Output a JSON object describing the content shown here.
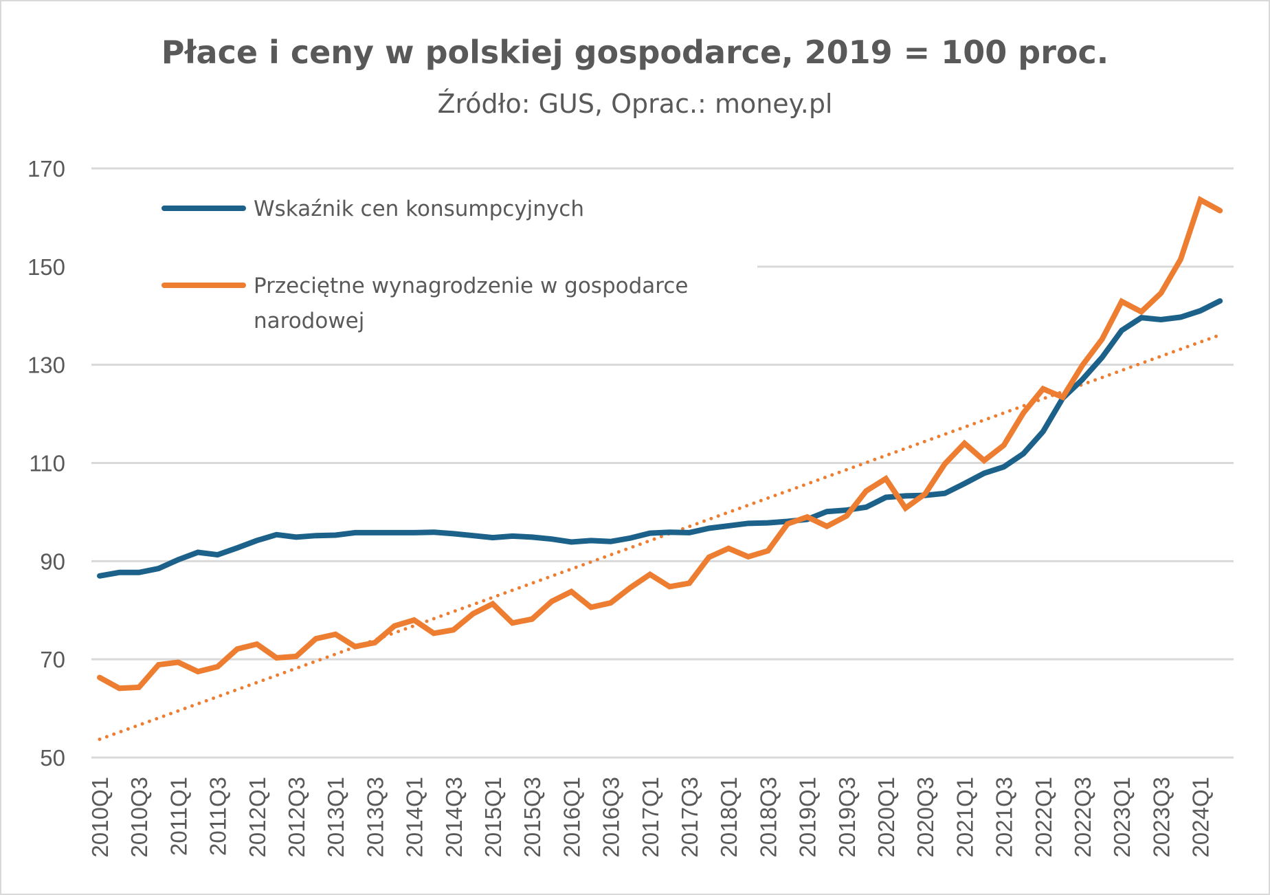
{
  "chart_data": {
    "type": "line",
    "title": "Płace i ceny w polskiej gospodarce, 2019 = 100 proc.",
    "subtitle": "Źródło: GUS, Oprac.: money.pl",
    "xlabel": "",
    "ylabel": "",
    "ylim": [
      50,
      170
    ],
    "yticks": [
      "50",
      "70",
      "90",
      "110",
      "130",
      "150",
      "170"
    ],
    "grid": true,
    "legend_position": "top-left",
    "x": [
      "2010Q1",
      "2010Q2",
      "2010Q3",
      "2010Q4",
      "2011Q1",
      "2011Q2",
      "2011Q3",
      "2011Q4",
      "2012Q1",
      "2012Q2",
      "2012Q3",
      "2012Q4",
      "2013Q1",
      "2013Q2",
      "2013Q3",
      "2013Q4",
      "2014Q1",
      "2014Q2",
      "2014Q3",
      "2014Q4",
      "2015Q1",
      "2015Q2",
      "2015Q3",
      "2015Q4",
      "2016Q1",
      "2016Q2",
      "2016Q3",
      "2016Q4",
      "2017Q1",
      "2017Q2",
      "2017Q3",
      "2017Q4",
      "2018Q1",
      "2018Q2",
      "2018Q3",
      "2018Q4",
      "2019Q1",
      "2019Q2",
      "2019Q3",
      "2019Q4",
      "2020Q1",
      "2020Q2",
      "2020Q3",
      "2020Q4",
      "2021Q1",
      "2021Q2",
      "2021Q3",
      "2021Q4",
      "2022Q1",
      "2022Q2",
      "2022Q3",
      "2022Q4",
      "2023Q1",
      "2023Q2",
      "2023Q3",
      "2023Q4",
      "2024Q1",
      "2024Q2"
    ],
    "xtick_labels": [
      "2010Q1",
      "2010Q3",
      "2011Q1",
      "2011Q3",
      "2012Q1",
      "2012Q3",
      "2013Q1",
      "2013Q3",
      "2014Q1",
      "2014Q3",
      "2015Q1",
      "2015Q3",
      "2016Q1",
      "2016Q3",
      "2017Q1",
      "2017Q3",
      "2018Q1",
      "2018Q3",
      "2019Q1",
      "2019Q3",
      "2020Q1",
      "2020Q3",
      "2021Q1",
      "2021Q3",
      "2022Q1",
      "2022Q3",
      "2023Q1",
      "2023Q3",
      "2024Q1"
    ],
    "series": [
      {
        "name": "Wskaźnik cen konsumpcyjnych",
        "color": "#1b6189",
        "values": [
          87.0,
          87.7,
          87.7,
          88.5,
          90.3,
          91.8,
          91.3,
          92.7,
          94.2,
          95.4,
          94.9,
          95.2,
          95.3,
          95.8,
          95.8,
          95.8,
          95.8,
          95.9,
          95.6,
          95.2,
          94.8,
          95.1,
          94.9,
          94.5,
          93.9,
          94.2,
          94.0,
          94.7,
          95.7,
          95.9,
          95.8,
          96.7,
          97.2,
          97.7,
          97.8,
          98.1,
          98.5,
          100.1,
          100.4,
          101.0,
          103.0,
          103.3,
          103.4,
          103.8,
          105.8,
          107.9,
          109.2,
          111.9,
          116.4,
          123.2,
          127.0,
          131.5,
          137.0,
          139.6,
          139.2,
          139.7,
          141.0,
          143.0
        ]
      },
      {
        "name": "Przeciętne wynagrodzenie w gospodarce narodowej",
        "name_lines": [
          "Przeciętne wynagrodzenie w gospodarce",
          "narodowej"
        ],
        "color": "#ed7d31",
        "trendline": "linear",
        "values": [
          66.3,
          64.1,
          64.3,
          68.9,
          69.4,
          67.5,
          68.5,
          72.1,
          73.1,
          70.3,
          70.6,
          74.2,
          75.1,
          72.6,
          73.4,
          76.8,
          78.0,
          75.3,
          76.0,
          79.3,
          81.3,
          77.4,
          78.2,
          81.8,
          83.8,
          80.6,
          81.5,
          84.6,
          87.3,
          84.8,
          85.5,
          90.8,
          92.6,
          90.9,
          92.1,
          97.6,
          99.0,
          97.1,
          99.2,
          104.3,
          106.8,
          100.8,
          103.7,
          109.8,
          114.0,
          110.5,
          113.6,
          120.2,
          125.1,
          123.4,
          129.9,
          135.2,
          142.9,
          140.8,
          144.6,
          151.5,
          163.6,
          161.4
        ]
      }
    ],
    "gridline_color": "#d9d9d9",
    "text_color": "#595959"
  }
}
